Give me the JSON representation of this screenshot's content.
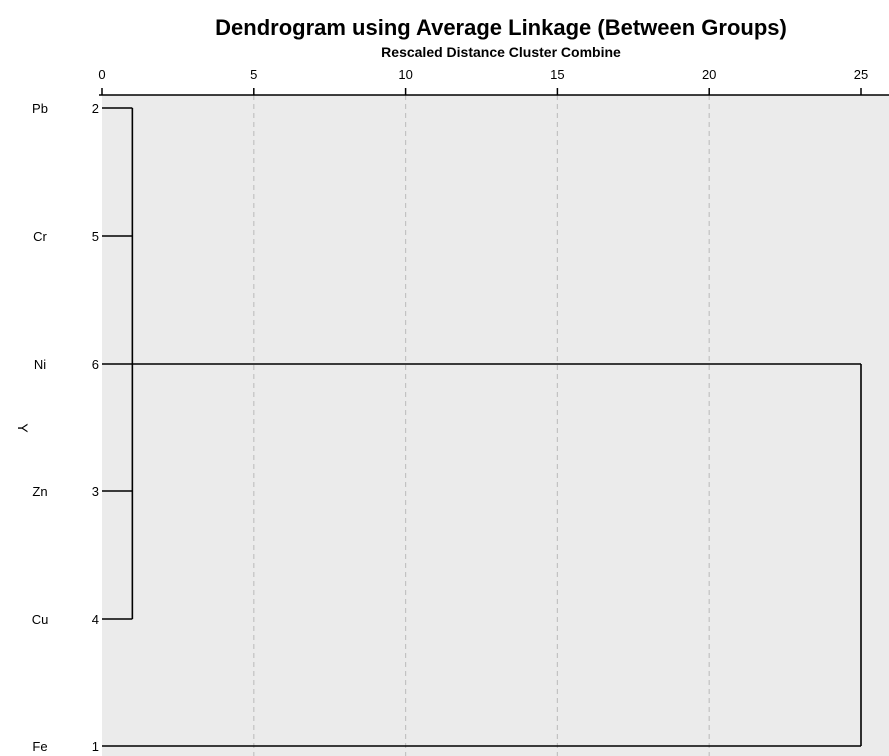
{
  "chart_data": {
    "type": "dendrogram",
    "title": "Dendrogram using Average Linkage (Between Groups)",
    "subtitle": "Rescaled Distance Cluster Combine",
    "xlabel": "Rescaled Distance Cluster Combine",
    "ylabel": "Y",
    "xlim": [
      0,
      25
    ],
    "x_ticks": [
      0,
      5,
      10,
      15,
      20,
      25
    ],
    "grid": true,
    "leaves": [
      {
        "label": "Pb",
        "case": "2"
      },
      {
        "label": "Cr",
        "case": "5"
      },
      {
        "label": "Ni",
        "case": "6"
      },
      {
        "label": "Zn",
        "case": "3"
      },
      {
        "label": "Cu",
        "case": "4"
      },
      {
        "label": "Fe",
        "case": "1"
      }
    ],
    "merges": [
      {
        "children": [
          "Pb",
          "Cr",
          "Ni",
          "Zn",
          "Cu"
        ],
        "distance": 1
      },
      {
        "children": [
          "cluster-1",
          "Fe"
        ],
        "distance": 25
      }
    ],
    "colors": {
      "plot_background": "#ebebeb",
      "grid_line": "#c2c2c2",
      "line": "#000000",
      "text": "#000000"
    }
  }
}
